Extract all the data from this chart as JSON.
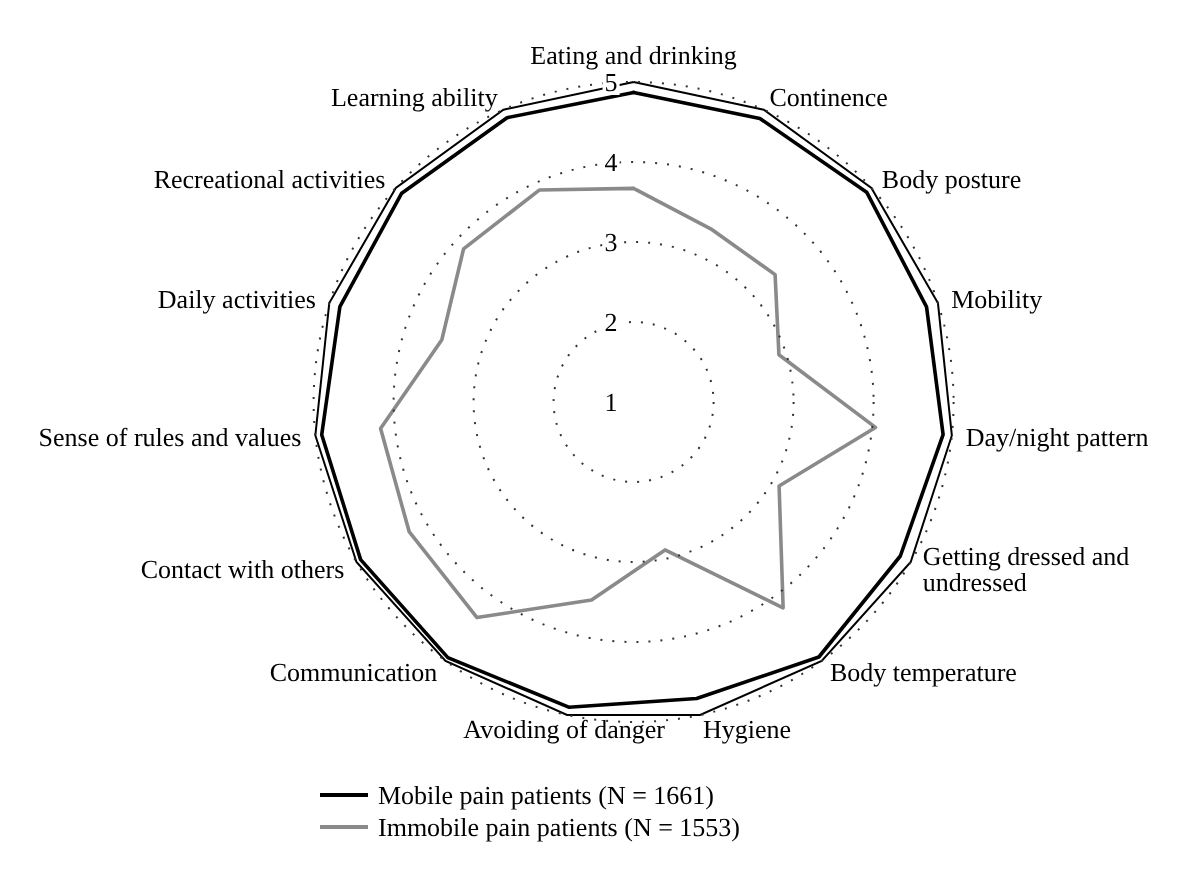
{
  "chart_data": {
    "type": "radar",
    "categories": [
      "Eating and drinking",
      "Continence",
      "Body posture",
      "Mobility",
      "Day/night pattern",
      "Getting dressed and undressed",
      "Body temperature",
      "Hygiene",
      "Avoiding of danger",
      "Communication",
      "Contact with others",
      "Sense of rules and values",
      "Daily activities",
      "Recreational activities",
      "Learning ability"
    ],
    "series": [
      {
        "name": "Mobile pain patients (N = 1661)",
        "color": "#000000",
        "values": [
          4.87,
          4.88,
          4.92,
          4.85,
          4.89,
          4.85,
          4.94,
          4.79,
          4.9,
          4.95,
          4.94,
          4.92,
          4.86,
          4.9,
          4.89
        ]
      },
      {
        "name": "Immobile pain patients (N = 1553)",
        "color": "#8a8a8a",
        "values": [
          3.67,
          3.37,
          3.38,
          2.91,
          4.04,
          3.1,
          4.18,
          2.89,
          3.53,
          4.33,
          4.24,
          4.18,
          3.52,
          3.86,
          3.9
        ]
      }
    ],
    "ylim": [
      1,
      5
    ],
    "yticks": [
      1,
      2,
      3,
      4,
      5
    ],
    "grid": true,
    "legend": "bottom"
  }
}
